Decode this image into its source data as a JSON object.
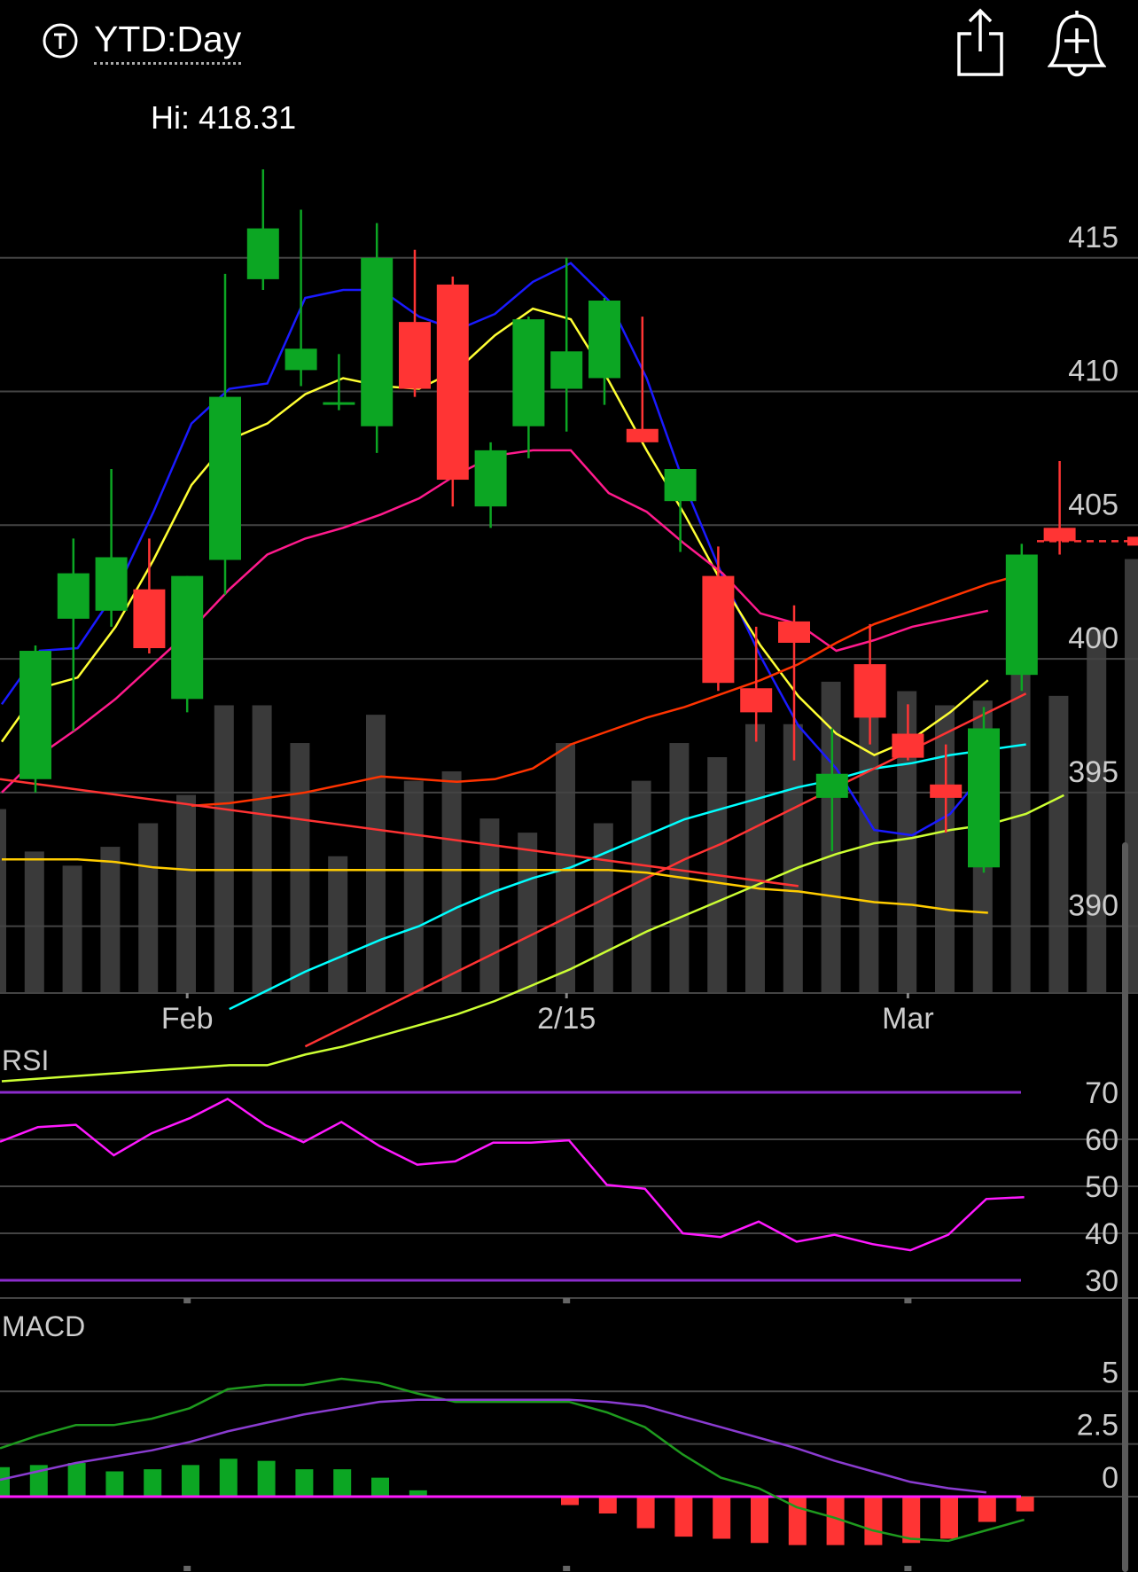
{
  "header": {
    "range_label": "YTD:Day",
    "t_icon": "t-circle-icon",
    "share_icon": "share-icon",
    "alert_icon": "add-alert-bell-icon"
  },
  "hi_label": "Hi: 418.31",
  "colors": {
    "up": "#0ca623",
    "down": "#ff3434",
    "volume": "#3a3a3a",
    "grid": "#444444",
    "rsi": "#ff19ff",
    "rsi_bands": "#8b2ccc",
    "macd_line": "#1e9a1e",
    "macd_signal": "#8a3cd0",
    "axis_text": "#cccccc"
  },
  "chart_data": [
    {
      "type": "candlestick",
      "title": "",
      "x_tick_labels": [
        "Feb",
        "2/15",
        "Mar"
      ],
      "x_tick_index": [
        4,
        14,
        23
      ],
      "y_ticks": [
        415,
        410,
        405,
        400,
        395,
        390
      ],
      "ylim": [
        387.5,
        420
      ],
      "last_price_marker": 404.4,
      "candles": [
        {
          "o": 395.5,
          "h": 400.5,
          "l": 395.0,
          "c": 400.3
        },
        {
          "o": 401.5,
          "h": 404.5,
          "l": 397.3,
          "c": 403.2
        },
        {
          "o": 401.8,
          "h": 407.1,
          "l": 401.2,
          "c": 403.8
        },
        {
          "o": 402.6,
          "h": 404.5,
          "l": 400.2,
          "c": 400.4
        },
        {
          "o": 398.5,
          "h": 403.1,
          "l": 398.0,
          "c": 403.1
        },
        {
          "o": 403.7,
          "h": 414.4,
          "l": 402.4,
          "c": 409.8
        },
        {
          "o": 414.2,
          "h": 418.31,
          "l": 413.8,
          "c": 416.1
        },
        {
          "o": 410.8,
          "h": 416.8,
          "l": 410.2,
          "c": 411.6
        },
        {
          "o": 409.6,
          "h": 411.4,
          "l": 409.3,
          "c": 409.6
        },
        {
          "o": 408.7,
          "h": 416.3,
          "l": 407.7,
          "c": 415.0
        },
        {
          "o": 412.6,
          "h": 415.3,
          "l": 409.8,
          "c": 410.1
        },
        {
          "o": 414.0,
          "h": 414.3,
          "l": 405.7,
          "c": 406.7
        },
        {
          "o": 405.7,
          "h": 408.1,
          "l": 404.9,
          "c": 407.8
        },
        {
          "o": 408.7,
          "h": 412.8,
          "l": 407.5,
          "c": 412.7
        },
        {
          "o": 410.1,
          "h": 415.0,
          "l": 408.5,
          "c": 411.5
        },
        {
          "o": 410.5,
          "h": 413.5,
          "l": 409.5,
          "c": 413.4
        },
        {
          "o": 408.6,
          "h": 412.8,
          "l": 408.1,
          "c": 408.1
        },
        {
          "o": 405.9,
          "h": 407.0,
          "l": 404.0,
          "c": 407.1
        },
        {
          "o": 403.1,
          "h": 404.2,
          "l": 398.8,
          "c": 399.1
        },
        {
          "o": 398.9,
          "h": 401.2,
          "l": 396.9,
          "c": 398.0
        },
        {
          "o": 401.4,
          "h": 402.0,
          "l": 396.2,
          "c": 400.6
        },
        {
          "o": 394.8,
          "h": 397.4,
          "l": 392.8,
          "c": 395.7
        },
        {
          "o": 399.8,
          "h": 401.3,
          "l": 396.8,
          "c": 397.8
        },
        {
          "o": 397.2,
          "h": 398.3,
          "l": 396.2,
          "c": 396.3
        },
        {
          "o": 395.3,
          "h": 396.8,
          "l": 393.5,
          "c": 394.8
        },
        {
          "o": 392.2,
          "h": 398.2,
          "l": 392.0,
          "c": 397.4
        },
        {
          "o": 399.4,
          "h": 404.3,
          "l": 398.8,
          "c": 403.9
        },
        {
          "o": 404.9,
          "h": 407.4,
          "l": 403.9,
          "c": 404.4
        }
      ],
      "volume_relative": [
        0.39,
        0.3,
        0.27,
        0.31,
        0.36,
        0.42,
        0.61,
        0.61,
        0.53,
        0.29,
        0.59,
        0.45,
        0.47,
        0.37,
        0.34,
        0.53,
        0.36,
        0.45,
        0.53,
        0.5,
        0.57,
        0.57,
        0.66,
        0.6,
        0.64,
        0.61,
        0.62,
        0.7,
        0.63,
        0.77,
        0.92
      ],
      "moving_averages": [
        {
          "color": "#1a1aff",
          "values": [
            398.3,
            400.3,
            400.4,
            402.5,
            405.5,
            408.8,
            410.1,
            410.3,
            413.5,
            413.8,
            413.8,
            412.8,
            412.3,
            412.9,
            414.1,
            414.8,
            413.4,
            410.5,
            406.5,
            403.1,
            400.1,
            397.5,
            395.9,
            393.6,
            393.4,
            394.2,
            395.9
          ]
        },
        {
          "color": "#ffff33",
          "values": [
            396.9,
            398.9,
            399.3,
            401.2,
            403.7,
            406.5,
            408.2,
            408.8,
            409.9,
            410.5,
            410.2,
            410.1,
            410.8,
            412.1,
            413.1,
            412.7,
            410.4,
            407.8,
            405.4,
            402.8,
            400.5,
            398.6,
            397.2,
            396.4,
            397.0,
            398.0,
            399.2
          ]
        },
        {
          "color": "#ff1a8c",
          "values": [
            395.0,
            396.4,
            397.4,
            398.5,
            399.8,
            401.1,
            402.6,
            403.9,
            404.5,
            404.9,
            405.4,
            406.0,
            406.9,
            407.6,
            407.8,
            407.8,
            406.2,
            405.5,
            404.3,
            403.2,
            401.7,
            401.3,
            400.3,
            400.7,
            401.2,
            401.5,
            401.8
          ]
        },
        {
          "color": "#ff3300",
          "values": [
            394.5,
            394.6,
            394.8,
            395.0,
            395.3,
            395.6,
            395.5,
            395.4,
            395.5,
            395.9,
            396.8,
            397.3,
            397.8,
            398.2,
            398.7,
            399.2,
            399.8,
            400.6,
            401.3,
            401.8,
            402.3,
            402.8,
            403.2
          ]
        },
        {
          "color": "#00ffff",
          "values": [
            386.9,
            387.6,
            388.3,
            388.9,
            389.5,
            390.0,
            390.7,
            391.3,
            391.8,
            392.2,
            392.8,
            393.4,
            394.0,
            394.4,
            394.8,
            395.2,
            395.5,
            395.9,
            396.1,
            396.4,
            396.6,
            396.8
          ]
        },
        {
          "color": "#ff3333",
          "values": [
            385.5,
            386.2,
            386.9,
            387.6,
            388.3,
            389.0,
            389.7,
            390.4,
            391.1,
            391.8,
            392.5,
            393.1,
            393.8,
            394.5,
            395.2,
            395.9,
            396.6,
            397.3,
            398.0,
            398.7
          ]
        },
        {
          "color": "#ffcc00",
          "values": [
            392.5,
            392.5,
            392.5,
            392.4,
            392.2,
            392.1,
            392.1,
            392.1,
            392.1,
            392.1,
            392.1,
            392.1,
            392.1,
            392.1,
            392.1,
            392.1,
            392.1,
            392.0,
            391.8,
            391.6,
            391.4,
            391.3,
            391.1,
            390.9,
            390.8,
            390.6,
            390.5
          ]
        },
        {
          "color": "#ccff33",
          "values": [
            384.2,
            384.3,
            384.4,
            384.5,
            384.6,
            384.7,
            384.8,
            384.8,
            385.2,
            385.5,
            385.9,
            386.3,
            386.7,
            387.2,
            387.8,
            388.4,
            389.1,
            389.8,
            390.4,
            391.0,
            391.6,
            392.2,
            392.7,
            393.1,
            393.3,
            393.6,
            393.8,
            394.2,
            394.9
          ]
        }
      ],
      "trend_line_down": {
        "color": "#ff3333",
        "from": 395.5,
        "to": 391.5
      }
    },
    {
      "type": "line",
      "title": "RSI",
      "y_ticks": [
        70,
        60,
        50,
        40,
        30
      ],
      "ylim": [
        25,
        72
      ],
      "bands": [
        70,
        30
      ],
      "values": [
        59.5,
        62.6,
        63.1,
        56.6,
        61.3,
        64.5,
        68.6,
        63.0,
        59.4,
        63.7,
        58.6,
        54.6,
        55.3,
        59.3,
        59.3,
        59.8,
        50.3,
        49.5,
        40.0,
        39.2,
        42.5,
        38.2,
        39.7,
        37.7,
        36.4,
        39.7,
        47.3,
        47.7
      ]
    },
    {
      "type": "line",
      "title": "MACD",
      "y_ticks": [
        5,
        "2.5",
        0
      ],
      "ylim": [
        -3,
        6.5
      ],
      "macd_line": [
        2.3,
        2.9,
        3.4,
        3.4,
        3.7,
        4.2,
        5.1,
        5.3,
        5.3,
        5.6,
        5.4,
        4.9,
        4.5,
        4.5,
        4.5,
        4.5,
        4.0,
        3.3,
        2.0,
        0.9,
        0.4,
        -0.5,
        -1.0,
        -1.6,
        -2.0,
        -2.1,
        -1.6,
        -1.1
      ],
      "signal_line": [
        0.8,
        1.2,
        1.6,
        1.9,
        2.2,
        2.6,
        3.1,
        3.5,
        3.9,
        4.2,
        4.5,
        4.6,
        4.6,
        4.6,
        4.6,
        4.6,
        4.5,
        4.3,
        3.8,
        3.3,
        2.8,
        2.3,
        1.7,
        1.2,
        0.7,
        0.4,
        0.2
      ],
      "histogram": [
        1.4,
        1.5,
        1.6,
        1.2,
        1.3,
        1.5,
        1.8,
        1.7,
        1.3,
        1.3,
        0.9,
        0.3,
        0,
        0,
        0,
        -0.4,
        -0.8,
        -1.5,
        -1.9,
        -2.0,
        -2.2,
        -2.3,
        -2.3,
        -2.3,
        -2.2,
        -2.0,
        -1.2,
        -0.7
      ]
    }
  ]
}
